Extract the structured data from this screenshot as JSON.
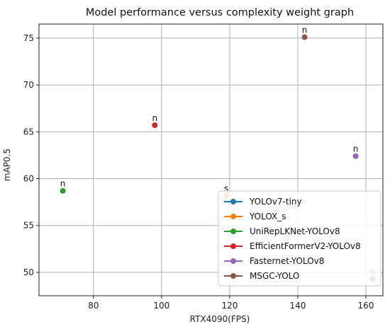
{
  "chart_data": {
    "type": "scatter",
    "title": "Model performance versus complexity weight graph",
    "xlabel": "RTX4090(FPS)",
    "ylabel": "mAP0.5",
    "xlim": [
      64,
      165
    ],
    "ylim": [
      47.5,
      76.5
    ],
    "xticks": [
      80,
      100,
      120,
      140,
      160
    ],
    "yticks": [
      50,
      55,
      60,
      65,
      70,
      75
    ],
    "grid": true,
    "legend_position": "bottom-right",
    "series": [
      {
        "name": "YOLOv7-tiny",
        "color": "#1f77b4",
        "x": 162,
        "y": 49.3,
        "label": "n"
      },
      {
        "name": "YOLOX_s",
        "color": "#ff7f0e",
        "x": 119,
        "y": 58.2,
        "label": "s"
      },
      {
        "name": "UniRepLKNet-YOLOv8",
        "color": "#2ca02c",
        "x": 71,
        "y": 58.7,
        "label": "n"
      },
      {
        "name": "EfficientFormerV2-YOLOv8",
        "color": "#d62728",
        "x": 98,
        "y": 65.7,
        "label": "n"
      },
      {
        "name": "Fasternet-YOLOv8",
        "color": "#9467bd",
        "x": 157,
        "y": 62.4,
        "label": "n"
      },
      {
        "name": "MSGC-YOLO",
        "color": "#8c564b",
        "x": 142,
        "y": 75.1,
        "label": "n"
      }
    ]
  }
}
